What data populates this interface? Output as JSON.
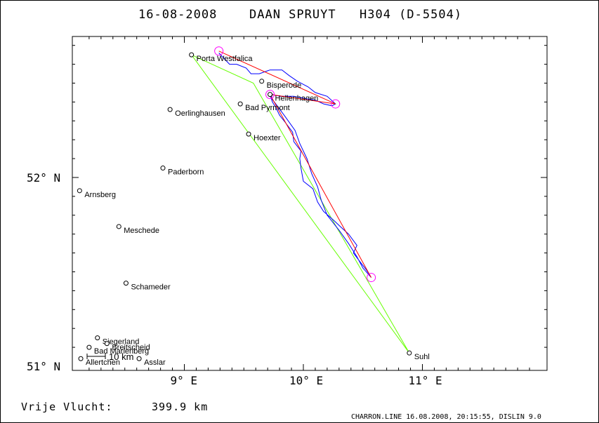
{
  "header": {
    "date": "16-08-2008",
    "pilot": "DAAN SPRUYT",
    "glider": "H304 (D-5504)"
  },
  "axes": {
    "lat_labels": [
      {
        "lat": 52,
        "text": "52° N"
      },
      {
        "lat": 51,
        "text": "51° N"
      }
    ],
    "lon_labels": [
      {
        "lon": 9,
        "text": "9° E"
      },
      {
        "lon": 10,
        "text": "10° E"
      },
      {
        "lon": 11,
        "text": "11° E"
      }
    ]
  },
  "scale_bar": {
    "label": "10 km"
  },
  "towns": [
    {
      "name": "Porta Westfalica",
      "lat": 52.65,
      "lon": 9.06
    },
    {
      "name": "Bisperode",
      "lat": 52.51,
      "lon": 9.65
    },
    {
      "name": "Hellenhagen",
      "lat": 52.44,
      "lon": 9.72
    },
    {
      "name": "Bad Pyrmont",
      "lat": 52.39,
      "lon": 9.47
    },
    {
      "name": "Oerlinghausen",
      "lat": 52.36,
      "lon": 8.88
    },
    {
      "name": "Hoexter",
      "lat": 52.23,
      "lon": 9.54
    },
    {
      "name": "Paderborn",
      "lat": 52.05,
      "lon": 8.82
    },
    {
      "name": "Arnsberg",
      "lat": 51.93,
      "lon": 8.12
    },
    {
      "name": "Meschede",
      "lat": 51.74,
      "lon": 8.45
    },
    {
      "name": "Schameder",
      "lat": 51.44,
      "lon": 8.51
    },
    {
      "name": "Siegerland",
      "lat": 51.15,
      "lon": 8.27
    },
    {
      "name": "Breitscheid",
      "lat": 51.12,
      "lon": 8.35
    },
    {
      "name": "Bad Marienberg",
      "lat": 51.1,
      "lon": 8.2
    },
    {
      "name": "Allertchen",
      "lat": 51.04,
      "lon": 8.13
    },
    {
      "name": "Asslar",
      "lat": 51.04,
      "lon": 8.62
    },
    {
      "name": "Suhl",
      "lat": 51.07,
      "lon": 10.89
    }
  ],
  "task_line": [
    {
      "lat": 52.65,
      "lon": 9.06
    },
    {
      "lat": 52.5,
      "lon": 9.58
    },
    {
      "lat": 51.07,
      "lon": 10.89
    },
    {
      "lat": 52.65,
      "lon": 9.06
    }
  ],
  "declared_line": [
    {
      "lat": 52.67,
      "lon": 9.29
    },
    {
      "lat": 52.39,
      "lon": 10.27
    },
    {
      "lat": 52.44,
      "lon": 9.72
    },
    {
      "lat": 51.47,
      "lon": 10.57
    }
  ],
  "turnpoints": [
    {
      "lat": 52.67,
      "lon": 9.29
    },
    {
      "lat": 52.39,
      "lon": 10.27
    },
    {
      "lat": 52.44,
      "lon": 9.72
    },
    {
      "lat": 51.47,
      "lon": 10.57
    }
  ],
  "flight_track": [
    {
      "lat": 52.66,
      "lon": 9.29
    },
    {
      "lat": 52.6,
      "lon": 9.38
    },
    {
      "lat": 52.6,
      "lon": 9.44
    },
    {
      "lat": 52.58,
      "lon": 9.52
    },
    {
      "lat": 52.55,
      "lon": 9.56
    },
    {
      "lat": 52.55,
      "lon": 9.63
    },
    {
      "lat": 52.57,
      "lon": 9.72
    },
    {
      "lat": 52.57,
      "lon": 9.82
    },
    {
      "lat": 52.54,
      "lon": 9.88
    },
    {
      "lat": 52.51,
      "lon": 9.95
    },
    {
      "lat": 52.48,
      "lon": 10.04
    },
    {
      "lat": 52.45,
      "lon": 10.1
    },
    {
      "lat": 52.43,
      "lon": 10.2
    },
    {
      "lat": 52.39,
      "lon": 10.27
    },
    {
      "lat": 52.38,
      "lon": 10.24
    },
    {
      "lat": 52.39,
      "lon": 10.17
    },
    {
      "lat": 52.41,
      "lon": 10.1
    },
    {
      "lat": 52.42,
      "lon": 10.0
    },
    {
      "lat": 52.43,
      "lon": 9.92
    },
    {
      "lat": 52.43,
      "lon": 9.8
    },
    {
      "lat": 52.44,
      "lon": 9.74
    },
    {
      "lat": 52.42,
      "lon": 9.73
    },
    {
      "lat": 52.4,
      "lon": 9.74
    },
    {
      "lat": 52.37,
      "lon": 9.77
    },
    {
      "lat": 52.33,
      "lon": 9.8
    },
    {
      "lat": 52.29,
      "lon": 9.85
    },
    {
      "lat": 52.24,
      "lon": 9.91
    },
    {
      "lat": 52.19,
      "lon": 9.92
    },
    {
      "lat": 52.14,
      "lon": 9.98
    },
    {
      "lat": 52.1,
      "lon": 9.97
    },
    {
      "lat": 52.05,
      "lon": 9.98
    },
    {
      "lat": 51.98,
      "lon": 10.0
    },
    {
      "lat": 51.94,
      "lon": 10.08
    },
    {
      "lat": 51.87,
      "lon": 10.12
    },
    {
      "lat": 51.82,
      "lon": 10.17
    },
    {
      "lat": 51.77,
      "lon": 10.26
    },
    {
      "lat": 51.74,
      "lon": 10.31
    },
    {
      "lat": 51.7,
      "lon": 10.38
    },
    {
      "lat": 51.64,
      "lon": 10.45
    },
    {
      "lat": 51.6,
      "lon": 10.42
    },
    {
      "lat": 51.55,
      "lon": 10.48
    },
    {
      "lat": 51.51,
      "lon": 10.53
    },
    {
      "lat": 51.47,
      "lon": 10.57
    },
    {
      "lat": 51.52,
      "lon": 10.5
    },
    {
      "lat": 51.58,
      "lon": 10.45
    },
    {
      "lat": 51.65,
      "lon": 10.38
    },
    {
      "lat": 51.72,
      "lon": 10.3
    },
    {
      "lat": 51.8,
      "lon": 10.2
    },
    {
      "lat": 51.88,
      "lon": 10.15
    },
    {
      "lat": 51.95,
      "lon": 10.12
    },
    {
      "lat": 52.02,
      "lon": 10.07
    },
    {
      "lat": 52.1,
      "lon": 10.03
    },
    {
      "lat": 52.18,
      "lon": 9.97
    },
    {
      "lat": 52.25,
      "lon": 9.93
    },
    {
      "lat": 52.32,
      "lon": 9.85
    },
    {
      "lat": 52.38,
      "lon": 9.78
    },
    {
      "lat": 52.43,
      "lon": 9.72
    }
  ],
  "colors": {
    "track": "#0000ff",
    "declared": "#ff0000",
    "task": "#66ff00",
    "turnpoint": "#ff00ff"
  },
  "distance": {
    "label": "Vrije Vlucht:",
    "value": "399.9 km"
  },
  "footer": "CHARRON.LINE 16.08.2008, 20:15:55, DISLIN 9.0"
}
